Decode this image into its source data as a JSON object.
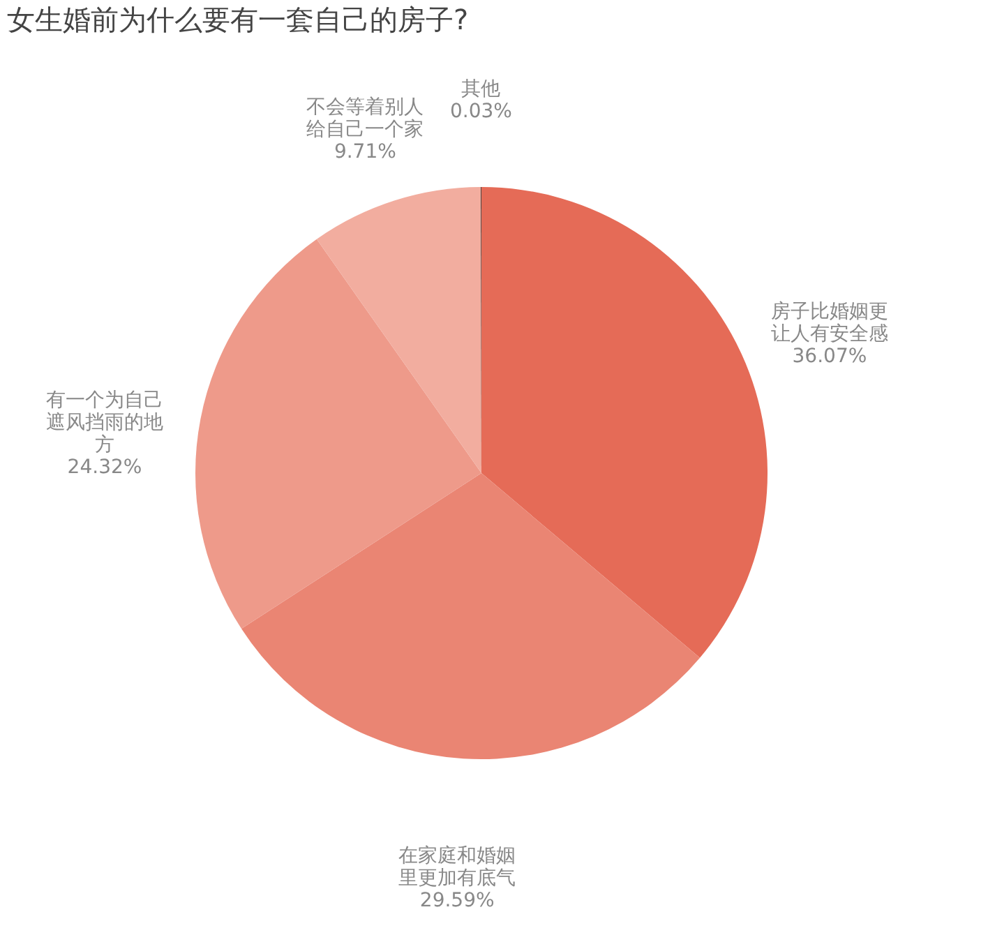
{
  "chart_data": {
    "type": "pie",
    "title": "女生婚前为什么要有一套自己的房子?",
    "categories": [
      "房子比婚姻更让人有安全感",
      "在家庭和婚姻里更加有底气",
      "有一个为自己遮风挡雨的地方",
      "不会等着别人给自己一个家",
      "其他"
    ],
    "values": [
      36.07,
      29.59,
      24.32,
      9.71,
      0.03
    ],
    "colors": [
      "#e56b57",
      "#ea8573",
      "#ee9a8a",
      "#f2ad9f",
      "#111111"
    ],
    "value_labels": [
      "36.07%",
      "29.59%",
      "24.32%",
      "9.71%",
      "0.03%"
    ],
    "legend": false
  }
}
